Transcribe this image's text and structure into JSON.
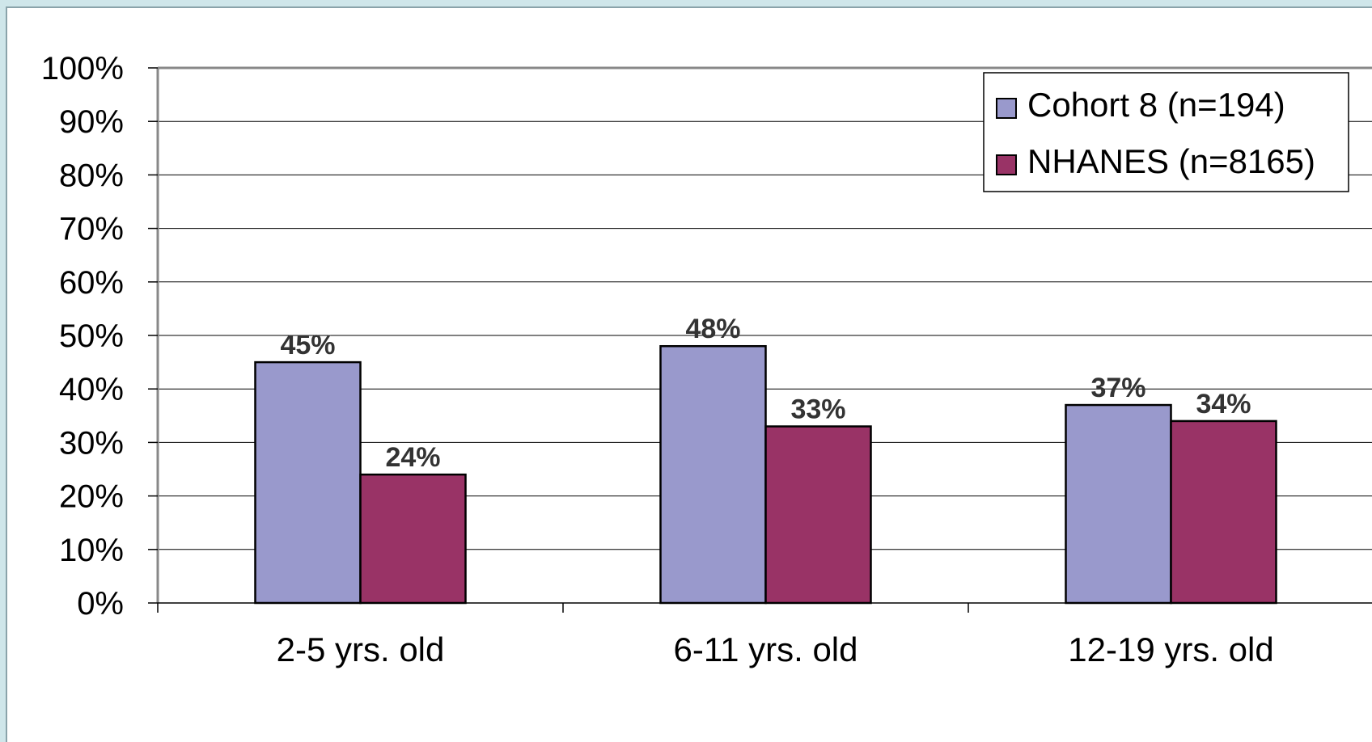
{
  "chart_data": {
    "type": "bar",
    "categories": [
      "2-5 yrs. old",
      "6-11 yrs. old",
      "12-19 yrs. old"
    ],
    "series": [
      {
        "name": "Cohort 8 (n=194)",
        "values": [
          45,
          48,
          37
        ],
        "labels": [
          "45%",
          "48%",
          "37%"
        ],
        "color": "#9999cc"
      },
      {
        "name": "NHANES (n=8165)",
        "values": [
          24,
          33,
          34
        ],
        "labels": [
          "24%",
          "33%",
          "34%"
        ],
        "color": "#993366"
      }
    ],
    "ylim": [
      0,
      100
    ],
    "yticks": [
      "0%",
      "10%",
      "20%",
      "30%",
      "40%",
      "50%",
      "60%",
      "70%",
      "80%",
      "90%",
      "100%"
    ],
    "title": "",
    "xlabel": "",
    "ylabel": "",
    "grid": true,
    "legend_position": "top-right"
  }
}
